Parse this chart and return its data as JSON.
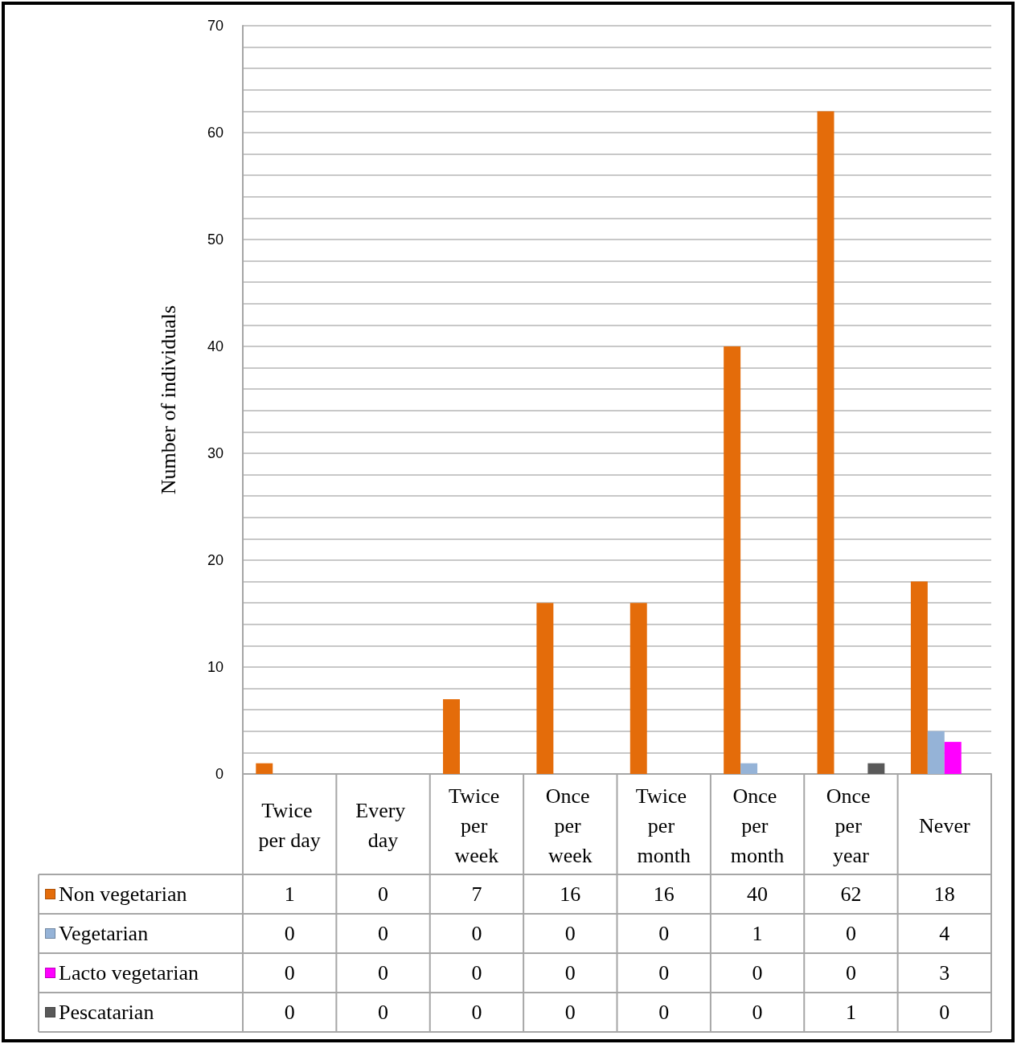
{
  "chart_data": {
    "type": "bar",
    "ylabel": "Number of individuals",
    "categories": [
      "Twice per day",
      "Every day",
      "Twice per week",
      "Once per week",
      "Twice per month",
      "Once per month",
      "Once per year",
      "Never"
    ],
    "series": [
      {
        "name": "Non vegetarian",
        "color": "#e46c0a",
        "values": [
          1,
          0,
          7,
          16,
          16,
          40,
          62,
          18
        ]
      },
      {
        "name": "Vegetarian",
        "color": "#95b3d7",
        "values": [
          0,
          0,
          0,
          0,
          0,
          1,
          0,
          4
        ]
      },
      {
        "name": "Lacto vegetarian",
        "color": "#ff00ff",
        "values": [
          0,
          0,
          0,
          0,
          0,
          0,
          0,
          3
        ]
      },
      {
        "name": "Pescatarian",
        "color": "#595959",
        "values": [
          0,
          0,
          0,
          0,
          0,
          0,
          1,
          0
        ]
      }
    ],
    "ylim": [
      0,
      70
    ],
    "yticks": [
      0,
      {
        "value": 2,
        "label": null
      },
      {
        "value": 4,
        "label": null
      },
      {
        "value": 6,
        "label": null
      },
      {
        "value": 8,
        "label": null
      },
      10,
      {
        "value": 12,
        "label": null
      },
      {
        "value": 14,
        "label": null
      },
      {
        "value": 16,
        "label": null
      },
      {
        "value": 18,
        "label": null
      },
      20,
      {
        "value": 22,
        "label": null
      },
      {
        "value": 24,
        "label": null
      },
      {
        "value": 26,
        "label": null
      },
      {
        "value": 28,
        "label": null
      },
      30,
      {
        "value": 32,
        "label": null
      },
      {
        "value": 34,
        "label": null
      },
      {
        "value": 36,
        "label": null
      },
      {
        "value": 38,
        "label": null
      },
      40,
      {
        "value": 42,
        "label": null
      },
      {
        "value": 44,
        "label": null
      },
      {
        "value": 46,
        "label": null
      },
      {
        "value": 48,
        "label": null
      },
      50,
      {
        "value": 52,
        "label": null
      },
      {
        "value": 54,
        "label": null
      },
      {
        "value": 56,
        "label": null
      },
      {
        "value": 58,
        "label": null
      },
      60,
      {
        "value": 62,
        "label": null
      },
      {
        "value": 64,
        "label": null
      },
      {
        "value": 66,
        "label": null
      },
      {
        "value": 68,
        "label": null
      },
      70
    ],
    "grid": "y",
    "legend": "bottom",
    "data_labels": true
  }
}
